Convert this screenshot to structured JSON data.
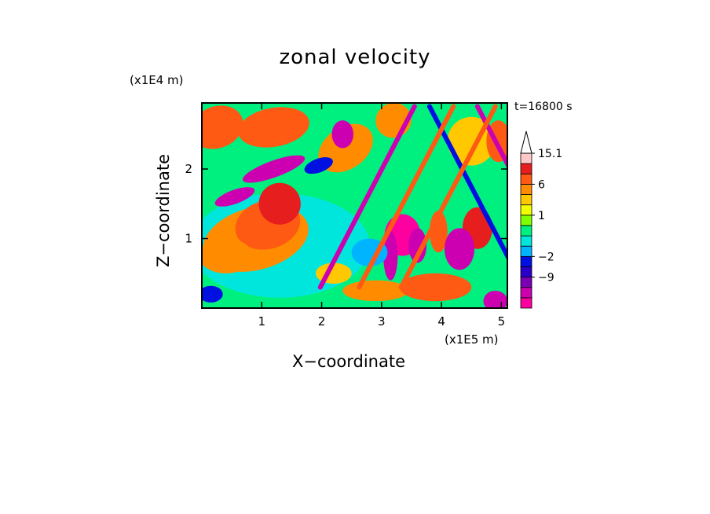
{
  "chart_data": {
    "type": "heatmap",
    "title": "zonal velocity",
    "xlabel": "X−coordinate",
    "ylabel": "Z−coordinate",
    "x_unit_label": "(x1E5 m)",
    "y_unit_label": "(x1E4 m)",
    "time_label": "t=16800 s",
    "xlim": [
      0,
      5.1
    ],
    "ylim": [
      0,
      2.95
    ],
    "x_ticks": [
      "1",
      "2",
      "3",
      "4",
      "5"
    ],
    "y_ticks": [
      "1",
      "2"
    ],
    "colorbar": {
      "levels": [
        -15,
        -12,
        -9,
        -6,
        -2,
        -1,
        0,
        0.5,
        1,
        2,
        4,
        6,
        9,
        12,
        15.1
      ],
      "tick_labels": [
        "15.1",
        "6",
        "1",
        "−2",
        "−9"
      ],
      "colors": [
        "#ff00a0",
        "#cc00b0",
        "#7a00b4",
        "#2a00c8",
        "#0010e0",
        "#00b4ff",
        "#00e6dc",
        "#00f080",
        "#80ff00",
        "#f0ff00",
        "#ffc800",
        "#ff8c00",
        "#ff5a14",
        "#e61e1e",
        "#ffc8c8"
      ],
      "over_arrow": "#ffffff"
    },
    "blobs": [
      {
        "x": 0.9,
        "y": 1.0,
        "rx": 0.9,
        "ry": 0.45,
        "v": 5,
        "rot": -15
      },
      {
        "x": 1.1,
        "y": 1.2,
        "rx": 0.55,
        "ry": 0.35,
        "v": 8,
        "rot": -15
      },
      {
        "x": 1.3,
        "y": 1.5,
        "rx": 0.35,
        "ry": 0.3,
        "v": 11,
        "rot": 0
      },
      {
        "x": 0.4,
        "y": 0.75,
        "rx": 0.45,
        "ry": 0.25,
        "v": 6,
        "rot": 0
      },
      {
        "x": 0.25,
        "y": 2.6,
        "rx": 0.45,
        "ry": 0.3,
        "v": 7,
        "rot": -20
      },
      {
        "x": 1.2,
        "y": 2.6,
        "rx": 0.6,
        "ry": 0.28,
        "v": 7,
        "rot": -10
      },
      {
        "x": 2.4,
        "y": 2.3,
        "rx": 0.5,
        "ry": 0.3,
        "v": 6,
        "rot": -35
      },
      {
        "x": 3.2,
        "y": 2.7,
        "rx": 0.3,
        "ry": 0.25,
        "v": 5,
        "rot": -30
      },
      {
        "x": 1.2,
        "y": 2.0,
        "rx": 0.55,
        "ry": 0.12,
        "v": -14,
        "rot": -20
      },
      {
        "x": 0.55,
        "y": 1.6,
        "rx": 0.35,
        "ry": 0.1,
        "v": -12,
        "rot": -20
      },
      {
        "x": 2.35,
        "y": 2.5,
        "rx": 0.18,
        "ry": 0.2,
        "v": -12,
        "rot": 0
      },
      {
        "x": 1.95,
        "y": 2.05,
        "rx": 0.25,
        "ry": 0.1,
        "v": -4,
        "rot": -20
      },
      {
        "x": 3.35,
        "y": 1.05,
        "rx": 0.3,
        "ry": 0.3,
        "v": -15,
        "rot": 0
      },
      {
        "x": 3.15,
        "y": 0.75,
        "rx": 0.12,
        "ry": 0.35,
        "v": -13,
        "rot": 0
      },
      {
        "x": 3.6,
        "y": 0.9,
        "rx": 0.15,
        "ry": 0.25,
        "v": -13,
        "rot": 0
      },
      {
        "x": 4.6,
        "y": 1.15,
        "rx": 0.25,
        "ry": 0.3,
        "v": 10,
        "rot": 0
      },
      {
        "x": 3.95,
        "y": 1.1,
        "rx": 0.15,
        "ry": 0.3,
        "v": 9,
        "rot": 0
      },
      {
        "x": 4.3,
        "y": 0.85,
        "rx": 0.25,
        "ry": 0.3,
        "v": -13,
        "rot": 0
      },
      {
        "x": 2.9,
        "y": 0.25,
        "rx": 0.55,
        "ry": 0.15,
        "v": 6,
        "rot": 0
      },
      {
        "x": 3.9,
        "y": 0.3,
        "rx": 0.6,
        "ry": 0.2,
        "v": 7,
        "rot": 0
      },
      {
        "x": 4.9,
        "y": 0.1,
        "rx": 0.2,
        "ry": 0.15,
        "v": -14,
        "rot": 0
      },
      {
        "x": 2.2,
        "y": 0.5,
        "rx": 0.3,
        "ry": 0.15,
        "v": 4,
        "rot": 0
      },
      {
        "x": 0.15,
        "y": 0.2,
        "rx": 0.2,
        "ry": 0.12,
        "v": -2,
        "rot": 0
      },
      {
        "x": 2.8,
        "y": 0.8,
        "rx": 0.3,
        "ry": 0.2,
        "v": -1.5,
        "rot": 0
      },
      {
        "x": 4.5,
        "y": 2.4,
        "rx": 0.4,
        "ry": 0.35,
        "v": 3,
        "rot": 0
      },
      {
        "x": 4.95,
        "y": 2.4,
        "rx": 0.2,
        "ry": 0.3,
        "v": 8,
        "rot": 0
      }
    ],
    "bands": [
      {
        "x": 3.55,
        "z": 2.9,
        "dir": -1,
        "v": -14
      },
      {
        "x": 3.8,
        "z": 2.9,
        "dir": 1,
        "v": -5
      },
      {
        "x": 4.2,
        "z": 2.9,
        "dir": -1,
        "v": 7
      },
      {
        "x": 4.6,
        "z": 2.9,
        "dir": 1,
        "v": -13
      },
      {
        "x": 4.9,
        "z": 2.9,
        "dir": -1,
        "v": 8
      }
    ]
  }
}
